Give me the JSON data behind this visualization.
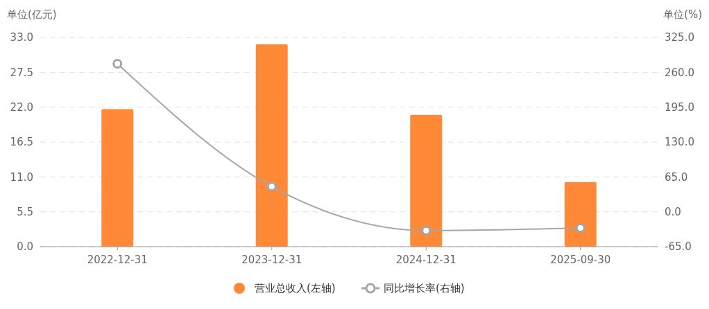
{
  "chart_data": {
    "type": "bar",
    "categories": [
      "2022-12-31",
      "2023-12-31",
      "2024-12-31",
      "2025-09-30"
    ],
    "ylabel": "单位(亿元)",
    "y2label": "单位(%)",
    "ylim": [
      0,
      33
    ],
    "yticks": [
      {
        "value": 0,
        "label": "0.0"
      },
      {
        "value": 5.5,
        "label": "5.5"
      },
      {
        "value": 11,
        "label": "11.0"
      },
      {
        "value": 16.5,
        "label": "16.5"
      },
      {
        "value": 22,
        "label": "22.0"
      },
      {
        "value": 27.5,
        "label": "27.5"
      },
      {
        "value": 33,
        "label": "33.0"
      }
    ],
    "y2lim": [
      -65,
      325
    ],
    "y2ticks": [
      {
        "value": -65,
        "label": "-65.0"
      },
      {
        "value": 0,
        "label": "0.0"
      },
      {
        "value": 65,
        "label": "65.0"
      },
      {
        "value": 130,
        "label": "130.0"
      },
      {
        "value": 195,
        "label": "195.0"
      },
      {
        "value": 260,
        "label": "260.0"
      },
      {
        "value": 325,
        "label": "325.0"
      }
    ],
    "grid": "y",
    "legend": "bottom",
    "series": [
      {
        "name": "营业总收入(左轴)",
        "color": "#ff8936",
        "values": [
          21.7,
          31.9,
          20.8,
          10.2
        ]
      },
      {
        "name": "同比增长率(右轴)",
        "type": "line",
        "axis": "y2",
        "color": "#a6a6a6",
        "marker": "circle",
        "values": [
          276,
          47,
          -35,
          -30
        ]
      }
    ]
  }
}
